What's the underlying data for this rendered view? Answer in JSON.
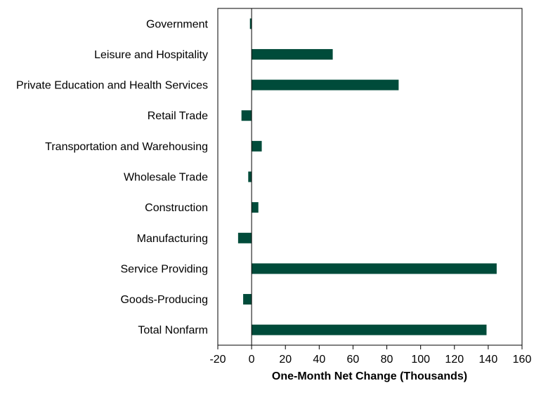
{
  "chart_data": {
    "type": "bar",
    "orientation": "horizontal",
    "categories": [
      "Government",
      "Leisure and Hospitality",
      "Private Education and Health Services",
      "Retail Trade",
      "Transportation and Warehousing",
      "Wholesale Trade",
      "Construction",
      "Manufacturing",
      "Service Providing",
      "Goods-Producing",
      "Total Nonfarm"
    ],
    "values": [
      -1,
      48,
      87,
      -6,
      6,
      -2,
      4,
      -8,
      145,
      -5,
      139
    ],
    "xlabel": "One-Month Net Change (Thousands)",
    "xlim": [
      -20,
      160
    ],
    "xticks": [
      -20,
      0,
      20,
      40,
      60,
      80,
      100,
      120,
      140,
      160
    ],
    "xtick_labels": [
      "-20",
      "0",
      "20",
      "40",
      "60",
      "80",
      "100",
      "120",
      "140",
      "160"
    ],
    "bar_color": "#004B3A",
    "grid": false,
    "legend": "none"
  }
}
